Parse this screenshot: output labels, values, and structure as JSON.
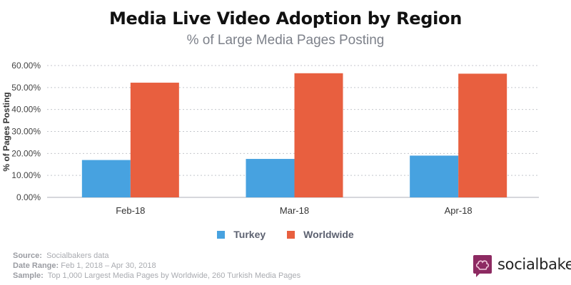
{
  "header": {
    "title": "Media Live Video Adoption by Region",
    "subtitle": "% of Large Media Pages Posting"
  },
  "chart_data": {
    "type": "bar",
    "title": "Media Live Video Adoption by Region",
    "subtitle": "% of Large Media Pages Posting",
    "xlabel": "",
    "ylabel": "% of Pages Posting",
    "ylim": [
      0,
      60
    ],
    "yticks": [
      0,
      10,
      20,
      30,
      40,
      50,
      60
    ],
    "ytick_labels": [
      "0.00%",
      "10.00%",
      "20.00%",
      "30.00%",
      "40.00%",
      "50.00%",
      "60.00%"
    ],
    "grid": true,
    "categories": [
      "Feb-18",
      "Mar-18",
      "Apr-18"
    ],
    "series": [
      {
        "name": "Turkey",
        "color": "#47a2e0",
        "values": [
          17.0,
          17.5,
          19.0
        ]
      },
      {
        "name": "Worldwide",
        "color": "#e85f3f",
        "values": [
          52.2,
          56.5,
          56.3
        ]
      }
    ],
    "legend_position": "bottom-center"
  },
  "footer": {
    "source_label": "Source:",
    "source_value": "Socialbakers data",
    "date_label": "Date Range:",
    "date_value": "Feb 1, 2018  – Apr 30, 2018",
    "sample_label": "Sample:",
    "sample_value": "Top 1,000 Largest Media Pages by Worldwide, 260 Turkish Media Pages"
  },
  "brand": {
    "name": "socialbakers",
    "icon": "chef-hat-speech-bubble-icon",
    "color": "#8d2a62"
  }
}
